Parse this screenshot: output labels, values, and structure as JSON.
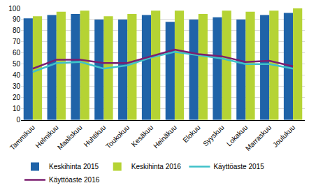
{
  "chart_data": {
    "type": "bar",
    "categories": [
      "Tammikuu",
      "Helmikuu",
      "Maaliskuu",
      "Huhtikuu",
      "Toukokuu",
      "Kesäkuu",
      "Heinäkuu",
      "Elokuu",
      "Syyskuu",
      "Lokakuu",
      "Marraskuu",
      "Joulukuu"
    ],
    "series": [
      {
        "name": "Keskihinta 2015",
        "type": "bar",
        "color": "#1f63a8",
        "values": [
          91,
          94,
          95,
          90,
          90,
          94,
          88,
          90,
          92,
          90,
          94,
          96
        ]
      },
      {
        "name": "Keskihinta 2016",
        "type": "bar",
        "color": "#b5d334",
        "values": [
          93,
          97,
          98,
          93,
          95,
          98,
          98,
          95,
          98,
          97,
          98,
          100
        ]
      },
      {
        "name": "Käyttöaste 2015",
        "type": "line",
        "color": "#3fc1c9",
        "values": [
          43,
          51,
          52,
          46,
          49,
          56,
          61,
          58,
          55,
          50,
          50,
          46
        ]
      },
      {
        "name": "Käyttöaste 2016",
        "type": "line",
        "color": "#7b1e6f",
        "values": [
          46,
          54,
          54,
          51,
          51,
          57,
          63,
          59,
          57,
          52,
          53,
          48
        ]
      }
    ],
    "ylim": [
      0,
      100
    ],
    "yticks": [
      0,
      10,
      20,
      30,
      40,
      50,
      60,
      70,
      80,
      90,
      100
    ],
    "grid": true,
    "legend": "bottom"
  }
}
